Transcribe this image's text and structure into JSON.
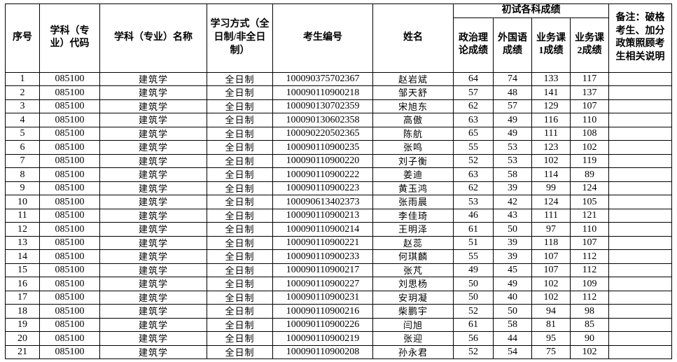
{
  "colors": {
    "border": "#000000",
    "background": "#ffffff",
    "text": "#000000"
  },
  "table": {
    "header": {
      "serial": "序号",
      "major_code": "学科（专\n业）代码",
      "major_name": "学科（专业）名称",
      "study_mode": "学习方式（全\n日制/非全日\n制）",
      "candidate_id": "考生编号",
      "candidate_name": "姓名",
      "scores_group": "初试各科成绩",
      "politics": "政治理\n论成绩",
      "foreign_language": "外国语\n成绩",
      "major_course_1": "业务课\n1成绩",
      "major_course_2": "业务课\n2成绩",
      "remarks": "备注：破格\n考生、加分\n政策照顾考\n生相关说明"
    },
    "rows": [
      {
        "no": "1",
        "code": "085100",
        "major": "建筑学",
        "mode": "全日制",
        "id": "100090375702367",
        "name": "赵岩斌",
        "politics": "64",
        "foreign": "74",
        "course1": "133",
        "course2": "117",
        "remark": ""
      },
      {
        "no": "2",
        "code": "085100",
        "major": "建筑学",
        "mode": "全日制",
        "id": "100090110900218",
        "name": "邹天舒",
        "politics": "57",
        "foreign": "48",
        "course1": "141",
        "course2": "137",
        "remark": ""
      },
      {
        "no": "3",
        "code": "085100",
        "major": "建筑学",
        "mode": "全日制",
        "id": "100090130702359",
        "name": "宋旭东",
        "politics": "62",
        "foreign": "57",
        "course1": "129",
        "course2": "107",
        "remark": ""
      },
      {
        "no": "4",
        "code": "085100",
        "major": "建筑学",
        "mode": "全日制",
        "id": "100090130602358",
        "name": "高傲",
        "politics": "63",
        "foreign": "49",
        "course1": "116",
        "course2": "110",
        "remark": ""
      },
      {
        "no": "5",
        "code": "085100",
        "major": "建筑学",
        "mode": "全日制",
        "id": "100090220502365",
        "name": "陈航",
        "politics": "65",
        "foreign": "49",
        "course1": "111",
        "course2": "108",
        "remark": ""
      },
      {
        "no": "6",
        "code": "085100",
        "major": "建筑学",
        "mode": "全日制",
        "id": "100090110900235",
        "name": "张鸣",
        "politics": "55",
        "foreign": "53",
        "course1": "123",
        "course2": "102",
        "remark": ""
      },
      {
        "no": "7",
        "code": "085100",
        "major": "建筑学",
        "mode": "全日制",
        "id": "100090110900220",
        "name": "刘子衡",
        "politics": "52",
        "foreign": "53",
        "course1": "102",
        "course2": "119",
        "remark": ""
      },
      {
        "no": "8",
        "code": "085100",
        "major": "建筑学",
        "mode": "全日制",
        "id": "100090110900222",
        "name": "姜迪",
        "politics": "63",
        "foreign": "58",
        "course1": "114",
        "course2": "89",
        "remark": ""
      },
      {
        "no": "9",
        "code": "085100",
        "major": "建筑学",
        "mode": "全日制",
        "id": "100090110900223",
        "name": "黄玉鸿",
        "politics": "62",
        "foreign": "39",
        "course1": "99",
        "course2": "124",
        "remark": ""
      },
      {
        "no": "10",
        "code": "085100",
        "major": "建筑学",
        "mode": "全日制",
        "id": "100090613402373",
        "name": "张雨晨",
        "politics": "53",
        "foreign": "42",
        "course1": "124",
        "course2": "105",
        "remark": ""
      },
      {
        "no": "11",
        "code": "085100",
        "major": "建筑学",
        "mode": "全日制",
        "id": "100090110900213",
        "name": "李佳琦",
        "politics": "46",
        "foreign": "43",
        "course1": "111",
        "course2": "121",
        "remark": ""
      },
      {
        "no": "12",
        "code": "085100",
        "major": "建筑学",
        "mode": "全日制",
        "id": "100090110900214",
        "name": "王明泽",
        "politics": "61",
        "foreign": "50",
        "course1": "97",
        "course2": "110",
        "remark": ""
      },
      {
        "no": "13",
        "code": "085100",
        "major": "建筑学",
        "mode": "全日制",
        "id": "100090110900221",
        "name": "赵蕊",
        "politics": "51",
        "foreign": "39",
        "course1": "118",
        "course2": "107",
        "remark": ""
      },
      {
        "no": "14",
        "code": "085100",
        "major": "建筑学",
        "mode": "全日制",
        "id": "100090110900233",
        "name": "何琪麟",
        "politics": "55",
        "foreign": "39",
        "course1": "107",
        "course2": "112",
        "remark": ""
      },
      {
        "no": "15",
        "code": "085100",
        "major": "建筑学",
        "mode": "全日制",
        "id": "100090110900217",
        "name": "张芃",
        "politics": "49",
        "foreign": "45",
        "course1": "107",
        "course2": "112",
        "remark": ""
      },
      {
        "no": "16",
        "code": "085100",
        "major": "建筑学",
        "mode": "全日制",
        "id": "100090110900227",
        "name": "刘思杨",
        "politics": "50",
        "foreign": "49",
        "course1": "102",
        "course2": "109",
        "remark": ""
      },
      {
        "no": "17",
        "code": "085100",
        "major": "建筑学",
        "mode": "全日制",
        "id": "100090110900231",
        "name": "安玥凝",
        "politics": "50",
        "foreign": "40",
        "course1": "102",
        "course2": "112",
        "remark": ""
      },
      {
        "no": "18",
        "code": "085100",
        "major": "建筑学",
        "mode": "全日制",
        "id": "100090110900216",
        "name": "柴鹏宇",
        "politics": "52",
        "foreign": "50",
        "course1": "94",
        "course2": "98",
        "remark": ""
      },
      {
        "no": "19",
        "code": "085100",
        "major": "建筑学",
        "mode": "全日制",
        "id": "100090110900226",
        "name": "闫旭",
        "politics": "61",
        "foreign": "58",
        "course1": "81",
        "course2": "85",
        "remark": ""
      },
      {
        "no": "20",
        "code": "085100",
        "major": "建筑学",
        "mode": "全日制",
        "id": "100090110900219",
        "name": "张迎",
        "politics": "56",
        "foreign": "44",
        "course1": "95",
        "course2": "90",
        "remark": ""
      },
      {
        "no": "21",
        "code": "085100",
        "major": "建筑学",
        "mode": "全日制",
        "id": "100090110900208",
        "name": "孙永君",
        "politics": "52",
        "foreign": "54",
        "course1": "75",
        "course2": "102",
        "remark": ""
      }
    ]
  }
}
